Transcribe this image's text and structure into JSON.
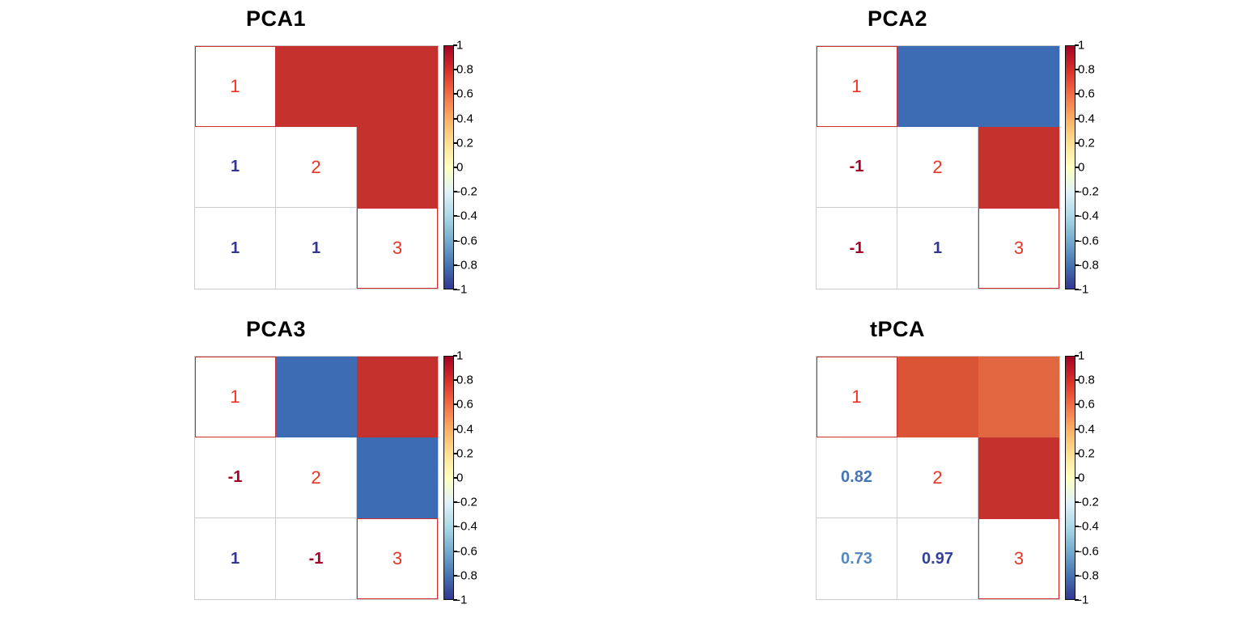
{
  "styles": {
    "background": "#ffffff",
    "diag_color": "#ea3323",
    "grid_line": "#cccccc",
    "highlight_border": "#cb2f2f",
    "colorbar_border": "#111111"
  },
  "colorbar": {
    "tick_labels": [
      "1",
      "0.8",
      "0.6",
      "0.4",
      "0.2",
      "0",
      "-0.2",
      "-0.4",
      "-0.6",
      "-0.8",
      "-1"
    ],
    "gradient_stops": [
      "#A50026",
      "#D73027",
      "#F46D43",
      "#FDAE61",
      "#FEE090",
      "#FFFFBF",
      "#E0F3F8",
      "#ABD9E9",
      "#74ADD1",
      "#4575B4",
      "#313695"
    ],
    "range": [
      -1,
      1
    ]
  },
  "plots": [
    {
      "title": "PCA1",
      "grid": [
        [
          {
            "diag": "1"
          },
          {
            "fill": "#C5312D"
          },
          {
            "fill": "#C5312D"
          }
        ],
        [
          {
            "value": "1",
            "color": "#313695"
          },
          {
            "diag": "2"
          },
          {
            "fill": "#C5312D"
          }
        ],
        [
          {
            "value": "1",
            "color": "#313695"
          },
          {
            "value": "1",
            "color": "#313695"
          },
          {
            "diag": "3"
          }
        ]
      ]
    },
    {
      "title": "PCA2",
      "grid": [
        [
          {
            "diag": "1"
          },
          {
            "fill": "#3D6CB5"
          },
          {
            "fill": "#3D6CB5"
          }
        ],
        [
          {
            "value": "-1",
            "color": "#A50026"
          },
          {
            "diag": "2"
          },
          {
            "fill": "#C5312D"
          }
        ],
        [
          {
            "value": "-1",
            "color": "#A50026"
          },
          {
            "value": "1",
            "color": "#313695"
          },
          {
            "diag": "3"
          }
        ]
      ]
    },
    {
      "title": "PCA3",
      "grid": [
        [
          {
            "diag": "1"
          },
          {
            "fill": "#3D6CB5"
          },
          {
            "fill": "#C5312D"
          }
        ],
        [
          {
            "value": "-1",
            "color": "#A50026"
          },
          {
            "diag": "2"
          },
          {
            "fill": "#3D6CB5"
          }
        ],
        [
          {
            "value": "1",
            "color": "#313695"
          },
          {
            "value": "-1",
            "color": "#A50026"
          },
          {
            "diag": "3"
          }
        ]
      ]
    },
    {
      "title": "tPCA",
      "grid": [
        [
          {
            "diag": "1"
          },
          {
            "fill": "#D95334"
          },
          {
            "fill": "#E0673F"
          }
        ],
        [
          {
            "value": "0.82",
            "color": "#4575B4"
          },
          {
            "diag": "2"
          },
          {
            "fill": "#C5312D"
          }
        ],
        [
          {
            "value": "0.73",
            "color": "#5588BE"
          },
          {
            "value": "0.97",
            "color": "#34409A"
          },
          {
            "diag": "3"
          }
        ]
      ]
    }
  ],
  "chart_data": [
    {
      "type": "heatmap",
      "title": "PCA1",
      "variables": [
        "1",
        "2",
        "3"
      ],
      "matrix": [
        [
          1,
          1,
          1
        ],
        [
          1,
          1,
          1
        ],
        [
          1,
          1,
          1
        ]
      ],
      "colorbar_range": [
        -1,
        1
      ],
      "colorbar_ticks": [
        1,
        0.8,
        0.6,
        0.4,
        0.2,
        0,
        -0.2,
        -0.4,
        -0.6,
        -0.8,
        -1
      ],
      "legend_position": "right"
    },
    {
      "type": "heatmap",
      "title": "PCA2",
      "variables": [
        "1",
        "2",
        "3"
      ],
      "matrix": [
        [
          1,
          -1,
          -1
        ],
        [
          -1,
          1,
          1
        ],
        [
          -1,
          1,
          1
        ]
      ],
      "colorbar_range": [
        -1,
        1
      ],
      "colorbar_ticks": [
        1,
        0.8,
        0.6,
        0.4,
        0.2,
        0,
        -0.2,
        -0.4,
        -0.6,
        -0.8,
        -1
      ],
      "legend_position": "right"
    },
    {
      "type": "heatmap",
      "title": "PCA3",
      "variables": [
        "1",
        "2",
        "3"
      ],
      "matrix": [
        [
          1,
          -1,
          1
        ],
        [
          -1,
          1,
          -1
        ],
        [
          1,
          -1,
          1
        ]
      ],
      "colorbar_range": [
        -1,
        1
      ],
      "colorbar_ticks": [
        1,
        0.8,
        0.6,
        0.4,
        0.2,
        0,
        -0.2,
        -0.4,
        -0.6,
        -0.8,
        -1
      ],
      "legend_position": "right"
    },
    {
      "type": "heatmap",
      "title": "tPCA",
      "variables": [
        "1",
        "2",
        "3"
      ],
      "matrix": [
        [
          1,
          0.82,
          0.73
        ],
        [
          0.82,
          1,
          0.97
        ],
        [
          0.73,
          0.97,
          1
        ]
      ],
      "colorbar_range": [
        -1,
        1
      ],
      "colorbar_ticks": [
        1,
        0.8,
        0.6,
        0.4,
        0.2,
        0,
        -0.2,
        -0.4,
        -0.6,
        -0.8,
        -1
      ],
      "legend_position": "right"
    }
  ]
}
